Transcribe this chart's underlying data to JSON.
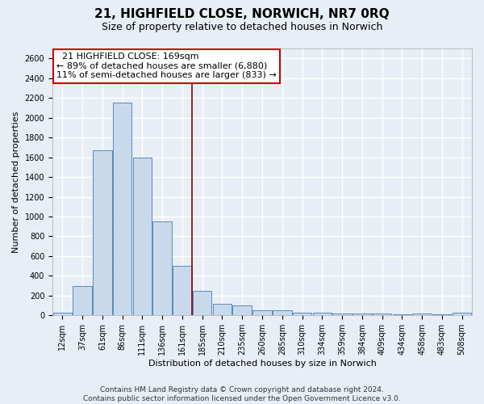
{
  "title1": "21, HIGHFIELD CLOSE, NORWICH, NR7 0RQ",
  "title2": "Size of property relative to detached houses in Norwich",
  "xlabel": "Distribution of detached houses by size in Norwich",
  "ylabel": "Number of detached properties",
  "categories": [
    "12sqm",
    "37sqm",
    "61sqm",
    "86sqm",
    "111sqm",
    "136sqm",
    "161sqm",
    "185sqm",
    "210sqm",
    "235sqm",
    "260sqm",
    "285sqm",
    "310sqm",
    "334sqm",
    "359sqm",
    "384sqm",
    "409sqm",
    "434sqm",
    "458sqm",
    "483sqm",
    "508sqm"
  ],
  "values": [
    25,
    300,
    1670,
    2150,
    1600,
    950,
    500,
    250,
    120,
    100,
    50,
    50,
    30,
    30,
    20,
    20,
    20,
    10,
    20,
    10,
    25
  ],
  "bar_color": "#c9d9ec",
  "bar_edge_color": "#5a8ab8",
  "annotation_text_line1": "21 HIGHFIELD CLOSE: 169sqm",
  "annotation_text_line2": "← 89% of detached houses are smaller (6,880)",
  "annotation_text_line3": "11% of semi-detached houses are larger (833) →",
  "vline_pos": 6.5,
  "vline_color": "#8b0000",
  "ylim": [
    0,
    2700
  ],
  "yticks": [
    0,
    200,
    400,
    600,
    800,
    1000,
    1200,
    1400,
    1600,
    1800,
    2000,
    2200,
    2400,
    2600
  ],
  "footer1": "Contains HM Land Registry data © Crown copyright and database right 2024.",
  "footer2": "Contains public sector information licensed under the Open Government Licence v3.0.",
  "bg_color": "#e8eef5",
  "plot_bg_color": "#e8eef5",
  "grid_color": "#ffffff",
  "title_fontsize": 11,
  "subtitle_fontsize": 9,
  "annotation_fontsize": 8,
  "tick_fontsize": 7,
  "ylabel_fontsize": 8,
  "xlabel_fontsize": 8,
  "footer_fontsize": 6.5
}
